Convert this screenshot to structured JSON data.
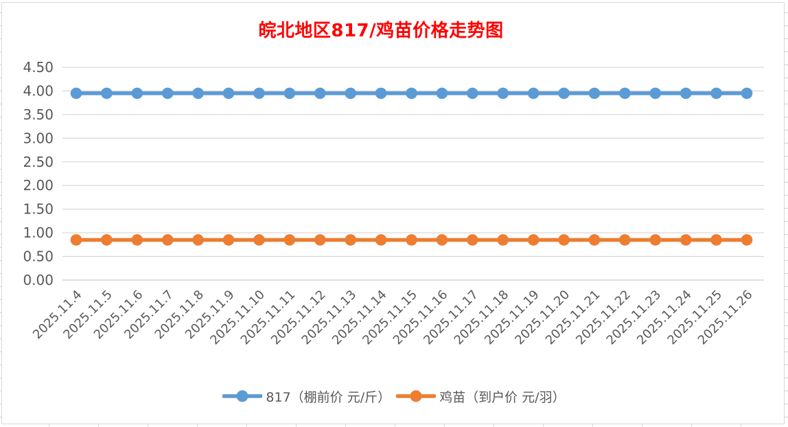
{
  "chart_data": {
    "type": "line",
    "title": "皖北地区817/鸡苗价格走势图",
    "title_color": "#FF0000",
    "categories": [
      "2025.11.4",
      "2025.11.5",
      "2025.11.6",
      "2025.11.7",
      "2025.11.8",
      "2025.11.9",
      "2025.11.10",
      "2025.11.11",
      "2025.11.12",
      "2025.11.13",
      "2025.11.14",
      "2025.11.15",
      "2025.11.16",
      "2025.11.17",
      "2025.11.18",
      "2025.11.19",
      "2025.11.20",
      "2025.11.21",
      "2025.11.22",
      "2025.11.23",
      "2025.11.24",
      "2025.11.25",
      "2025.11.26"
    ],
    "series": [
      {
        "name": "817（棚前价 元/斤）",
        "color": "#5B9BD5",
        "values": [
          3.95,
          3.95,
          3.95,
          3.95,
          3.95,
          3.95,
          3.95,
          3.95,
          3.95,
          3.95,
          3.95,
          3.95,
          3.95,
          3.95,
          3.95,
          3.95,
          3.95,
          3.95,
          3.95,
          3.95,
          3.95,
          3.95,
          3.95
        ]
      },
      {
        "name": "鸡苗（到户价 元/羽）",
        "color": "#ED7D31",
        "values": [
          0.85,
          0.85,
          0.85,
          0.85,
          0.85,
          0.85,
          0.85,
          0.85,
          0.85,
          0.85,
          0.85,
          0.85,
          0.85,
          0.85,
          0.85,
          0.85,
          0.85,
          0.85,
          0.85,
          0.85,
          0.85,
          0.85,
          0.85
        ]
      }
    ],
    "y_ticks": [
      "4.50",
      "4.00",
      "3.50",
      "3.00",
      "2.50",
      "2.00",
      "1.50",
      "1.00",
      "0.50",
      "0.00"
    ],
    "ylim": [
      0,
      4.5
    ],
    "xlabel": "",
    "ylabel": "",
    "grid": true,
    "legend_position": "bottom",
    "axis_label_color": "#595959",
    "legend_text_color": "#595959",
    "gridline_color": "#D9D9D9",
    "bottom_gridline_color": "#C9C9C9"
  }
}
